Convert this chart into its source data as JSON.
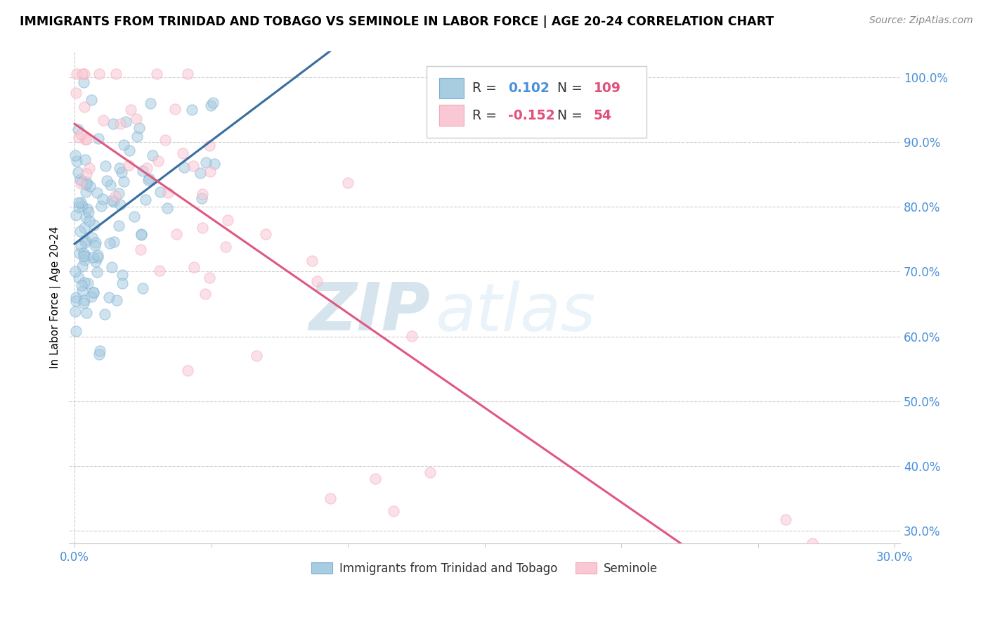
{
  "title": "IMMIGRANTS FROM TRINIDAD AND TOBAGO VS SEMINOLE IN LABOR FORCE | AGE 20-24 CORRELATION CHART",
  "source": "Source: ZipAtlas.com",
  "ylabel": "In Labor Force | Age 20-24",
  "xlim": [
    -0.002,
    0.302
  ],
  "ylim": [
    0.28,
    1.04
  ],
  "xticks": [
    0.0,
    0.05,
    0.1,
    0.15,
    0.2,
    0.25,
    0.3
  ],
  "xticklabels": [
    "0.0%",
    "",
    "",
    "",
    "",
    "",
    "30.0%"
  ],
  "yticks_right": [
    0.3,
    0.4,
    0.5,
    0.6,
    0.7,
    0.8,
    0.9,
    1.0
  ],
  "yticklabels_right": [
    "30.0%",
    "40.0%",
    "50.0%",
    "60.0%",
    "70.0%",
    "80.0%",
    "90.0%",
    "100.0%"
  ],
  "blue_color": "#7bafd4",
  "pink_color": "#f4a8b8",
  "blue_fill": "#a8cce0",
  "pink_fill": "#f9c8d4",
  "blue_line_color": "#3a6fa0",
  "pink_line_color": "#e05880",
  "dashed_line_color": "#90bcd8",
  "R_blue": 0.102,
  "N_blue": 109,
  "R_pink": -0.152,
  "N_pink": 54,
  "legend_label_blue": "Immigrants from Trinidad and Tobago",
  "legend_label_pink": "Seminole",
  "watermark_zip": "ZIP",
  "watermark_atlas": "atlas",
  "text_blue": "#4a90d9",
  "text_dark": "#333333",
  "grid_color": "#cccccc",
  "dot_size": 120,
  "dot_alpha": 0.55
}
